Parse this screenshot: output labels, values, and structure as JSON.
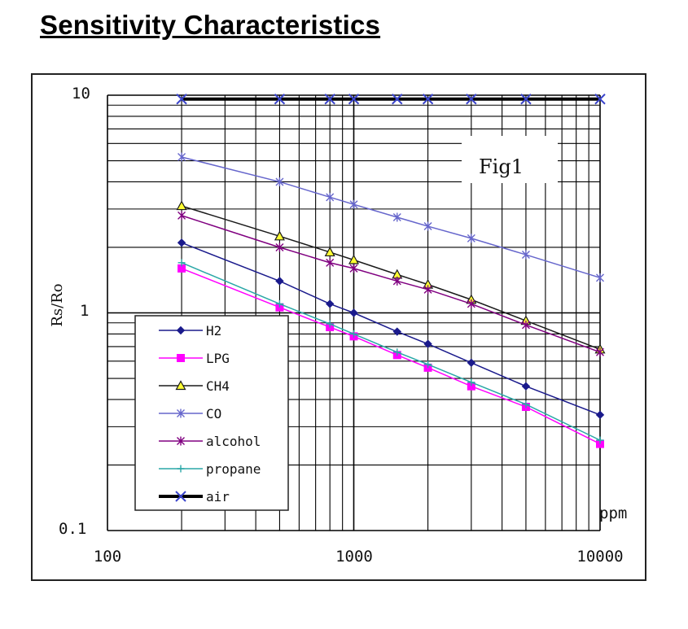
{
  "page": {
    "title": "Sensitivity Characteristics"
  },
  "chart_data": {
    "type": "line",
    "title": "",
    "annotation": "Fig1",
    "xlabel": "ppm",
    "ylabel": "Rs/Ro",
    "x_scale": "log",
    "y_scale": "log",
    "xlim": [
      100,
      10000
    ],
    "ylim": [
      0.1,
      10
    ],
    "x_tick_labels": [
      "100",
      "1000",
      "10000"
    ],
    "y_tick_labels": [
      "0.1",
      "1",
      "10"
    ],
    "grid": true,
    "legend_position": "bottom-left",
    "x": [
      200,
      500,
      800,
      1000,
      1500,
      2000,
      3000,
      5000,
      10000
    ],
    "series": [
      {
        "name": "H2",
        "color": "#1a1a8c",
        "marker": "diamond",
        "values": [
          2.1,
          1.4,
          1.1,
          1.0,
          0.82,
          0.72,
          0.59,
          0.46,
          0.34
        ]
      },
      {
        "name": "LPG",
        "color": "#ff00ff",
        "marker": "square",
        "values": [
          1.6,
          1.06,
          0.86,
          0.78,
          0.64,
          0.56,
          0.46,
          0.37,
          0.25
        ]
      },
      {
        "name": "CH4",
        "color": "#1a1a1a",
        "marker": "triangle",
        "values": [
          3.1,
          2.25,
          1.9,
          1.75,
          1.5,
          1.35,
          1.15,
          0.92,
          0.68
        ]
      },
      {
        "name": "CO",
        "color": "#6666cc",
        "marker": "star",
        "values": [
          5.2,
          4.0,
          3.4,
          3.15,
          2.75,
          2.5,
          2.2,
          1.85,
          1.45
        ]
      },
      {
        "name": "alcohol",
        "color": "#800080",
        "marker": "star",
        "values": [
          2.8,
          2.0,
          1.7,
          1.6,
          1.4,
          1.28,
          1.1,
          0.88,
          0.66
        ]
      },
      {
        "name": "propane",
        "color": "#2aa7a7",
        "marker": "plus",
        "values": [
          1.7,
          1.1,
          0.89,
          0.8,
          0.66,
          0.58,
          0.48,
          0.38,
          0.26
        ]
      },
      {
        "name": "air",
        "color": "#000000",
        "marker": "x",
        "values": [
          9.6,
          9.6,
          9.6,
          9.6,
          9.6,
          9.6,
          9.6,
          9.6,
          9.6
        ]
      }
    ]
  }
}
